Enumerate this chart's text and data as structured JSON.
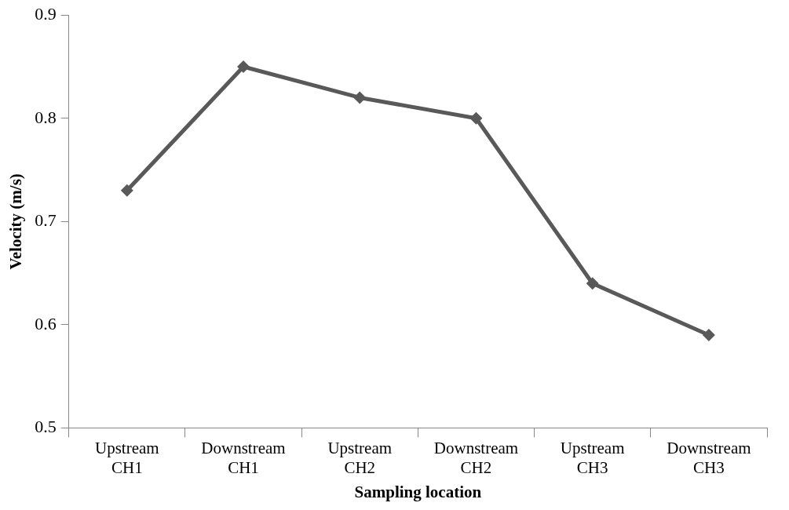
{
  "chart_data": {
    "type": "line",
    "xlabel": "Sampling location",
    "ylabel": "Velocity (m/s)",
    "categories": [
      "Upstream CH1",
      "Downstream CH1",
      "Upstream CH2",
      "Downstream CH2",
      "Upstream CH3",
      "Downstream CH3"
    ],
    "series": [
      {
        "color": "#595959",
        "values": [
          0.73,
          0.85,
          0.82,
          0.8,
          0.64,
          0.59
        ]
      }
    ],
    "ylim": [
      0.5,
      0.9
    ],
    "yticks": [
      0.5,
      0.6,
      0.7,
      0.8,
      0.9
    ],
    "grid": false,
    "legend": false,
    "marker": "diamond",
    "line_style": "solid"
  }
}
